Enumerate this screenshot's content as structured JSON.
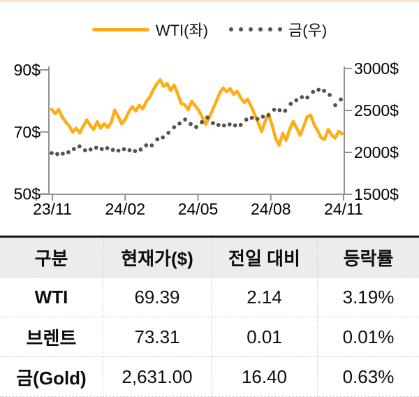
{
  "page": {
    "top_strip_color": "#f8e4ce",
    "axis_color": "#919191",
    "text_color": "#000000"
  },
  "chart_data": {
    "type": "line",
    "title": "",
    "legend_position": "top-center",
    "grid": false,
    "x_ticks": [
      "23/11",
      "24/02",
      "24/05",
      "24/08",
      "24/11"
    ],
    "left_axis": {
      "min": 50,
      "max": 90,
      "unit": "$",
      "ticks": [
        {
          "label": "90$",
          "value": 90
        },
        {
          "label": "70$",
          "value": 70
        },
        {
          "label": "50$",
          "value": 50
        }
      ]
    },
    "right_axis": {
      "min": 1500,
      "max": 3000,
      "unit": "$",
      "ticks": [
        {
          "label": "3000$",
          "value": 3000
        },
        {
          "label": "2500$",
          "value": 2500
        },
        {
          "label": "2000$",
          "value": 2000
        },
        {
          "label": "1500$",
          "value": 1500
        }
      ]
    },
    "series": [
      {
        "name": "WTI(좌)",
        "axis": "left",
        "style": "solid",
        "color": "#FBAE17",
        "values": [
          77.3,
          75.9,
          77.2,
          74.9,
          73.2,
          71.9,
          69.9,
          71.2,
          69.6,
          71.8,
          73.9,
          72.1,
          70.8,
          73.3,
          71.2,
          72.7,
          71.4,
          73.0,
          77.0,
          75.0,
          72.6,
          74.0,
          76.4,
          78.2,
          76.7,
          78.6,
          77.4,
          79.7,
          81.2,
          83.5,
          85.4,
          86.8,
          84.7,
          85.6,
          83.3,
          85.1,
          82.3,
          79.2,
          78.8,
          77.1,
          79.9,
          78.4,
          77.0,
          74.8,
          72.4,
          74.6,
          77.3,
          79.8,
          82.6,
          84.2,
          83.0,
          84.0,
          82.1,
          83.1,
          81.0,
          79.5,
          80.6,
          78.2,
          75.6,
          73.0,
          70.1,
          73.5,
          75.8,
          72.0,
          67.8,
          65.7,
          69.5,
          67.3,
          70.9,
          73.4,
          71.2,
          68.9,
          71.8,
          74.9,
          75.4,
          72.3,
          70.4,
          68.1,
          67.6,
          70.8,
          69.0,
          68.0,
          70.2,
          69.4
        ]
      },
      {
        "name": "금(우)",
        "axis": "right",
        "style": "dotted",
        "color": "#5A5248",
        "values": [
          1992,
          1981,
          1985,
          2002,
          2041,
          2072,
          2025,
          2035,
          2055,
          2040,
          2051,
          2030,
          2021,
          2038,
          2026,
          2015,
          2034,
          2084,
          2083,
          2156,
          2178,
          2233,
          2300,
          2344,
          2392,
          2338,
          2302,
          2360,
          2415,
          2348,
          2327,
          2321,
          2333,
          2322,
          2327,
          2390,
          2411,
          2399,
          2426,
          2443,
          2508,
          2503,
          2497,
          2578,
          2622,
          2658,
          2654,
          2721,
          2747,
          2734,
          2685,
          2563,
          2631
        ]
      }
    ]
  },
  "table": {
    "headers": [
      "구분",
      "현재가($)",
      "전일 대비",
      "등락률"
    ],
    "rows": [
      {
        "label": "WTI",
        "price": "69.39",
        "change": "2.14",
        "pct": "3.19%"
      },
      {
        "label": "브렌트",
        "price": "73.31",
        "change": "0.01",
        "pct": "0.01%"
      },
      {
        "label": "금(Gold)",
        "price": "2,631.00",
        "change": "16.40",
        "pct": "0.63%"
      }
    ]
  }
}
